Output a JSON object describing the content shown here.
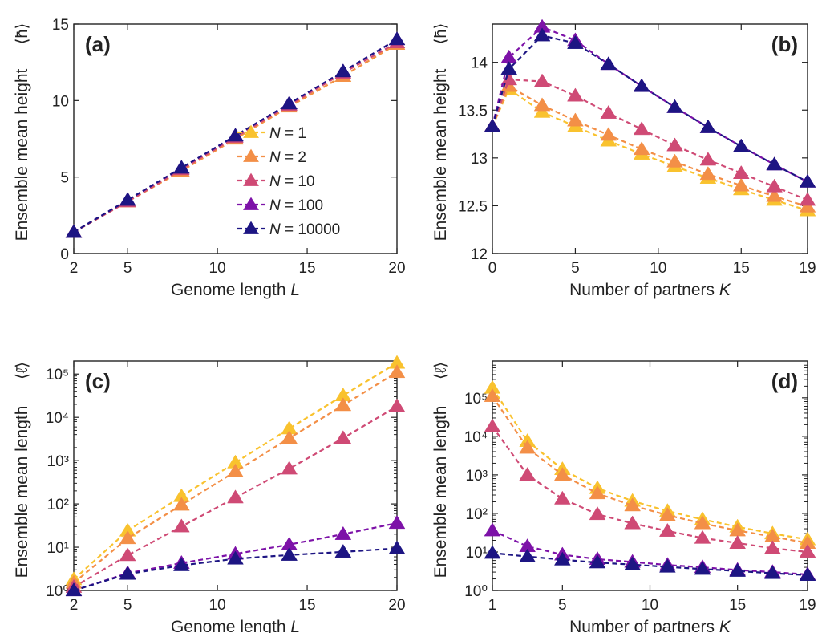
{
  "colors": {
    "N1": "#f9c22e",
    "N2": "#f38f47",
    "N10": "#cf4a75",
    "N100": "#7d12a8",
    "N10000": "#1d1583"
  },
  "legend": {
    "placement": "center",
    "entries": [
      {
        "prefix": "N",
        "suffix": " = 1",
        "color_key": "N1"
      },
      {
        "prefix": "N",
        "suffix": " = 2",
        "color_key": "N2"
      },
      {
        "prefix": "N",
        "suffix": " = 10",
        "color_key": "N10"
      },
      {
        "prefix": "N",
        "suffix": " = 100",
        "color_key": "N100"
      },
      {
        "prefix": "N",
        "suffix": " = 10000",
        "color_key": "N10000"
      }
    ]
  },
  "chart_data": [
    {
      "id": "a",
      "type": "line",
      "panel_label": "(a)",
      "xlabel": "Genome length L",
      "ylabel": "Ensemble mean height",
      "ylabel_symbol": "⟨h̄⟩",
      "xscale": "linear",
      "yscale": "linear",
      "xlim": [
        2,
        20
      ],
      "ylim": [
        0,
        15
      ],
      "xticks": [
        2,
        5,
        10,
        15,
        20
      ],
      "yticks": [
        0,
        5,
        10,
        15
      ],
      "grid": false,
      "x": [
        2,
        5,
        8,
        11,
        14,
        17,
        20
      ],
      "series": [
        {
          "name": "N = 1",
          "color_key": "N1",
          "values": [
            1.4,
            3.4,
            5.4,
            7.5,
            9.6,
            11.6,
            13.7
          ]
        },
        {
          "name": "N = 2",
          "color_key": "N2",
          "values": [
            1.4,
            3.4,
            5.4,
            7.5,
            9.6,
            11.6,
            13.7
          ]
        },
        {
          "name": "N = 10",
          "color_key": "N10",
          "values": [
            1.4,
            3.4,
            5.5,
            7.6,
            9.7,
            11.8,
            13.8
          ]
        },
        {
          "name": "N = 100",
          "color_key": "N100",
          "values": [
            1.4,
            3.5,
            5.6,
            7.7,
            9.8,
            11.9,
            14.0
          ]
        },
        {
          "name": "N = 10000",
          "color_key": "N10000",
          "values": [
            1.4,
            3.5,
            5.6,
            7.7,
            9.8,
            11.9,
            14.0
          ]
        }
      ]
    },
    {
      "id": "b",
      "type": "line",
      "panel_label": "(b)",
      "xlabel": "Number of partners K",
      "ylabel": "Ensemble mean height",
      "ylabel_symbol": "⟨h̄⟩",
      "xscale": "linear",
      "yscale": "linear",
      "xlim": [
        0,
        19
      ],
      "ylim": [
        12,
        14.4
      ],
      "xticks": [
        0,
        5,
        10,
        15,
        19
      ],
      "yticks": [
        12,
        12.5,
        13,
        13.5,
        14
      ],
      "grid": false,
      "x": [
        0,
        1,
        3,
        5,
        7,
        9,
        11,
        13,
        15,
        17,
        19
      ],
      "series": [
        {
          "name": "N = 1",
          "color_key": "N1",
          "values": [
            13.33,
            13.72,
            13.48,
            13.33,
            13.18,
            13.04,
            12.91,
            12.79,
            12.67,
            12.56,
            12.45
          ]
        },
        {
          "name": "N = 2",
          "color_key": "N2",
          "values": [
            13.33,
            13.75,
            13.55,
            13.39,
            13.24,
            13.09,
            12.96,
            12.83,
            12.71,
            12.6,
            12.49
          ]
        },
        {
          "name": "N = 10",
          "color_key": "N10",
          "values": [
            13.33,
            13.82,
            13.8,
            13.65,
            13.47,
            13.3,
            13.13,
            12.98,
            12.84,
            12.7,
            12.56
          ]
        },
        {
          "name": "N = 100",
          "color_key": "N100",
          "values": [
            13.33,
            14.05,
            14.37,
            14.23,
            13.98,
            13.75,
            13.53,
            13.32,
            13.12,
            12.93,
            12.75
          ]
        },
        {
          "name": "N = 10000",
          "color_key": "N10000",
          "values": [
            13.33,
            13.93,
            14.28,
            14.2,
            13.98,
            13.75,
            13.53,
            13.32,
            13.12,
            12.93,
            12.75
          ]
        }
      ]
    },
    {
      "id": "c",
      "type": "line",
      "panel_label": "(c)",
      "xlabel": "Genome length L",
      "ylabel": "Ensemble mean length",
      "ylabel_symbol": "⟨ℓ̄⟩",
      "xscale": "linear",
      "yscale": "log",
      "xlim": [
        2,
        20
      ],
      "ylim": [
        1,
        200000
      ],
      "xticks": [
        2,
        5,
        10,
        15,
        20
      ],
      "yticks": [
        1,
        10,
        100,
        1000,
        10000,
        100000
      ],
      "grid": false,
      "x": [
        2,
        5,
        8,
        11,
        14,
        17,
        20
      ],
      "series": [
        {
          "name": "N = 1",
          "color_key": "N1",
          "values": [
            1.8,
            24,
            150,
            900,
            5500,
            32000,
            180000
          ]
        },
        {
          "name": "N = 2",
          "color_key": "N2",
          "values": [
            1.5,
            16,
            95,
            560,
            3300,
            19000,
            110000
          ]
        },
        {
          "name": "N = 10",
          "color_key": "N10",
          "values": [
            1.2,
            6.5,
            30,
            140,
            650,
            3300,
            18000
          ]
        },
        {
          "name": "N = 100",
          "color_key": "N100",
          "values": [
            1.0,
            2.5,
            4.3,
            7.0,
            11.5,
            20,
            36
          ]
        },
        {
          "name": "N = 10000",
          "color_key": "N10000",
          "values": [
            1.0,
            2.4,
            3.8,
            5.4,
            6.6,
            7.8,
            9.4
          ]
        }
      ]
    },
    {
      "id": "d",
      "type": "line",
      "panel_label": "(d)",
      "xlabel": "Number of partners K",
      "ylabel": "Ensemble mean length",
      "ylabel_symbol": "⟨ℓ̄⟩",
      "xscale": "linear",
      "yscale": "log",
      "xlim": [
        1,
        19
      ],
      "ylim": [
        1,
        900000
      ],
      "xticks": [
        1,
        5,
        10,
        15,
        19
      ],
      "yticks": [
        1,
        10,
        100,
        1000,
        10000,
        100000
      ],
      "grid": false,
      "x": [
        1,
        3,
        5,
        7,
        9,
        11,
        13,
        15,
        17,
        19
      ],
      "series": [
        {
          "name": "N = 1",
          "color_key": "N1",
          "values": [
            180000,
            7500,
            1400,
            450,
            210,
            115,
            70,
            45,
            30,
            21
          ]
        },
        {
          "name": "N = 2",
          "color_key": "N2",
          "values": [
            110000,
            5000,
            1000,
            330,
            160,
            90,
            55,
            36,
            25,
            17
          ]
        },
        {
          "name": "N = 10",
          "color_key": "N10",
          "values": [
            18000,
            1000,
            240,
            95,
            55,
            35,
            23,
            17,
            12.5,
            10
          ]
        },
        {
          "name": "N = 100",
          "color_key": "N100",
          "values": [
            36,
            14,
            8.5,
            6.5,
            5.5,
            4.6,
            4.0,
            3.4,
            3.0,
            2.6
          ]
        },
        {
          "name": "N = 10000",
          "color_key": "N10000",
          "values": [
            9.4,
            7.6,
            6.3,
            5.3,
            4.7,
            4.1,
            3.6,
            3.2,
            2.8,
            2.5
          ]
        }
      ]
    }
  ]
}
